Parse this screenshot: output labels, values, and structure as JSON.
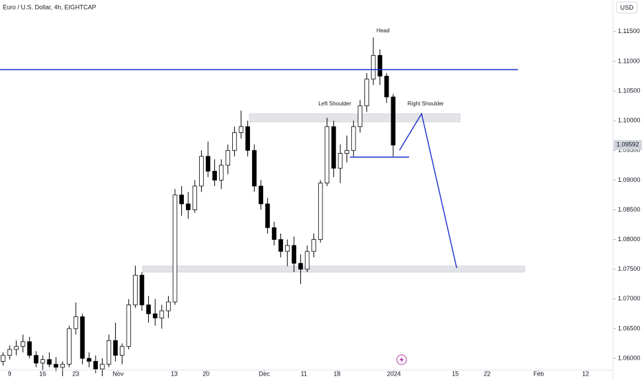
{
  "chart_data": {
    "type": "candlestick",
    "title": "Euro / U.S. Dollar, 4h, EIGHTCAP",
    "currency": "USD",
    "last_price": 1.09592,
    "annotations": [
      "Head",
      "Left Shoulder",
      "Right Shoulder"
    ],
    "x": [
      -1,
      0,
      1,
      2,
      3,
      4,
      5,
      6,
      7,
      8,
      9,
      10,
      11,
      12,
      13,
      14,
      15,
      16,
      17,
      18,
      19,
      20,
      21,
      22,
      23,
      24,
      25,
      26,
      27,
      28,
      29,
      30,
      31,
      32,
      33,
      34,
      35,
      36,
      37,
      38,
      39,
      40,
      41,
      42,
      43,
      44,
      45,
      46,
      47,
      48,
      49,
      50,
      51,
      52,
      53,
      54,
      55,
      56,
      57,
      58
    ],
    "open": [
      1.0595,
      1.0605,
      1.0615,
      1.062,
      1.0628,
      1.0605,
      1.0592,
      1.0598,
      1.059,
      1.0585,
      1.059,
      1.065,
      1.067,
      1.06,
      1.0595,
      1.0582,
      1.059,
      1.063,
      1.0605,
      1.062,
      1.069,
      1.074,
      1.069,
      1.0675,
      1.0668,
      1.068,
      1.0695,
      1.0875,
      1.086,
      1.085,
      1.089,
      1.094,
      1.0915,
      1.09,
      1.0925,
      1.095,
      1.098,
      1.099,
      1.095,
      1.089,
      1.086,
      1.082,
      1.08,
      1.078,
      1.079,
      1.076,
      1.075,
      1.078,
      1.08,
      1.0895,
      1.099,
      1.092,
      1.0945,
      1.095,
      1.099,
      1.1025,
      1.107,
      1.111,
      1.1075,
      1.104
    ],
    "high": [
      1.061,
      1.0622,
      1.063,
      1.064,
      1.0636,
      1.0612,
      1.0605,
      1.061,
      1.0602,
      1.0595,
      1.0655,
      1.0694,
      1.0675,
      1.061,
      1.0605,
      1.06,
      1.064,
      1.066,
      1.0625,
      1.07,
      1.0756,
      1.0745,
      1.0705,
      1.07,
      1.069,
      1.0705,
      1.0885,
      1.089,
      1.088,
      1.09,
      1.095,
      1.0965,
      1.0935,
      1.0935,
      1.096,
      1.099,
      1.1017,
      1.1,
      1.096,
      1.09,
      1.087,
      1.083,
      1.081,
      1.08,
      1.0805,
      1.0775,
      1.079,
      1.081,
      1.09,
      1.1005,
      1.1,
      1.096,
      1.0975,
      1.1,
      1.1035,
      1.108,
      1.114,
      1.112,
      1.108,
      1.1045
    ],
    "low": [
      1.0588,
      1.0598,
      1.0605,
      1.061,
      1.06,
      1.0585,
      1.058,
      1.0585,
      1.0578,
      1.057,
      1.0585,
      1.064,
      1.059,
      1.0585,
      1.0575,
      1.057,
      1.0585,
      1.0595,
      1.059,
      1.0615,
      1.0685,
      1.068,
      1.066,
      1.0655,
      1.065,
      1.0668,
      1.069,
      1.084,
      1.0835,
      1.0845,
      1.088,
      1.0905,
      1.089,
      1.0885,
      1.091,
      1.094,
      1.097,
      1.094,
      1.088,
      1.085,
      1.081,
      1.079,
      1.077,
      1.0755,
      1.0745,
      1.0725,
      1.0745,
      1.077,
      1.0795,
      1.089,
      1.0905,
      1.0895,
      1.093,
      1.094,
      1.098,
      1.1015,
      1.106,
      1.106,
      1.103,
      1.094
    ],
    "close": [
      1.0605,
      1.0615,
      1.062,
      1.0628,
      1.0605,
      1.0592,
      1.0598,
      1.059,
      1.0585,
      1.059,
      1.065,
      1.067,
      1.06,
      1.0595,
      1.0582,
      1.059,
      1.063,
      1.0605,
      1.062,
      1.069,
      1.074,
      1.069,
      1.0675,
      1.0668,
      1.068,
      1.0695,
      1.0875,
      1.086,
      1.085,
      1.089,
      1.094,
      1.0915,
      1.09,
      1.0925,
      1.095,
      1.098,
      1.099,
      1.095,
      1.089,
      1.086,
      1.082,
      1.08,
      1.078,
      1.079,
      1.076,
      1.075,
      1.078,
      1.08,
      1.0895,
      1.099,
      1.092,
      1.0945,
      1.095,
      1.099,
      1.1025,
      1.107,
      1.111,
      1.1075,
      1.104,
      1.0959
    ],
    "xlim": [
      -1.46,
      91.25
    ],
    "xticks": [
      {
        "value": 0,
        "label": "9"
      },
      {
        "value": 5,
        "label": "16"
      },
      {
        "value": 10,
        "label": "23"
      },
      {
        "value": 16.4,
        "label": "Nov"
      },
      {
        "value": 24.9,
        "label": "13"
      },
      {
        "value": 29.7,
        "label": "20"
      },
      {
        "value": 38.5,
        "label": "Dec"
      },
      {
        "value": 44.5,
        "label": "11"
      },
      {
        "value": 49.5,
        "label": "18"
      },
      {
        "value": 58.1,
        "label": "2024"
      },
      {
        "value": 67.4,
        "label": "15"
      },
      {
        "value": 72.2,
        "label": "22"
      },
      {
        "value": 80,
        "label": "Feb"
      },
      {
        "value": 87.1,
        "label": "12"
      }
    ],
    "ylim": [
      1.05803,
      1.12032
    ],
    "yticks": [
      {
        "value": 1.06,
        "label": "1.06000"
      },
      {
        "value": 1.065,
        "label": "1.06500"
      },
      {
        "value": 1.07,
        "label": "1.07000"
      },
      {
        "value": 1.075,
        "label": "1.07500"
      },
      {
        "value": 1.08,
        "label": "1.08000"
      },
      {
        "value": 1.085,
        "label": "1.08500"
      },
      {
        "value": 1.09,
        "label": "1.09000"
      },
      {
        "value": 1.095,
        "label": "1.09500"
      },
      {
        "value": 1.1,
        "label": "1.10000"
      },
      {
        "value": 1.105,
        "label": "1.10500"
      },
      {
        "value": 1.11,
        "label": "1.11000"
      },
      {
        "value": 1.115,
        "label": "1.11500"
      }
    ]
  }
}
